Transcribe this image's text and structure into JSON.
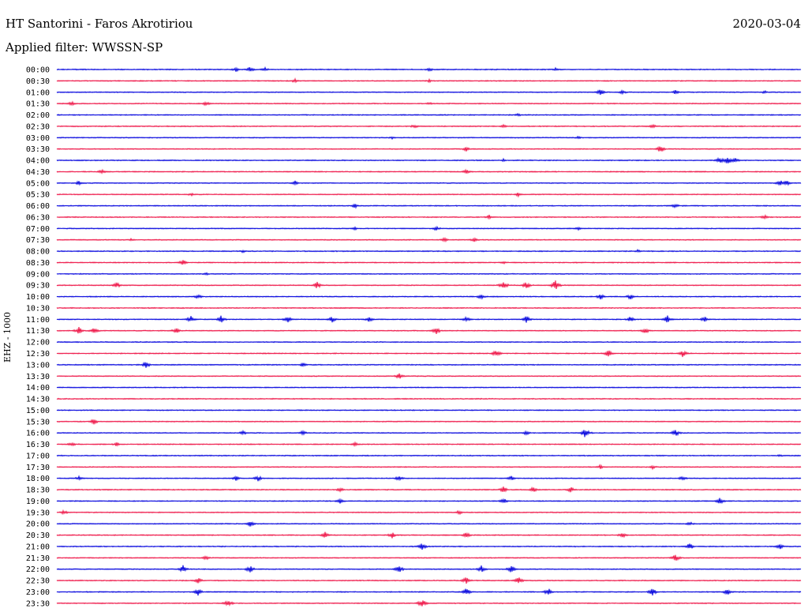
{
  "header": {
    "station": "HT Santorini - Faros Akrotiriou",
    "date": "2020-03-04",
    "filter": "Applied filter: WWSSN-SP"
  },
  "chart_data": {
    "type": "line",
    "title": "HT Santorini - Faros Akrotiriou",
    "ylabel": "EHZ - 1000",
    "colors": [
      "#0000dd",
      "#ee1144"
    ],
    "rows": [
      {
        "label": "00:00",
        "events": [
          {
            "t": 0.24,
            "a": 3
          },
          {
            "t": 0.26,
            "a": 4
          },
          {
            "t": 0.28,
            "a": 3
          },
          {
            "t": 0.5,
            "a": 3
          },
          {
            "t": 0.67,
            "a": 2
          }
        ]
      },
      {
        "label": "00:30",
        "events": [
          {
            "t": 0.32,
            "a": 3
          },
          {
            "t": 0.5,
            "a": 2
          }
        ]
      },
      {
        "label": "01:00",
        "events": [
          {
            "t": 0.73,
            "a": 4
          },
          {
            "t": 0.76,
            "a": 3
          },
          {
            "t": 0.83,
            "a": 3
          },
          {
            "t": 0.95,
            "a": 2
          }
        ]
      },
      {
        "label": "01:30",
        "events": [
          {
            "t": 0.02,
            "a": 3
          },
          {
            "t": 0.2,
            "a": 3
          },
          {
            "t": 0.5,
            "a": 2
          }
        ]
      },
      {
        "label": "02:00",
        "events": [
          {
            "t": 0.62,
            "a": 2
          }
        ]
      },
      {
        "label": "02:30",
        "events": [
          {
            "t": 0.48,
            "a": 3
          },
          {
            "t": 0.6,
            "a": 2
          },
          {
            "t": 0.8,
            "a": 3
          }
        ]
      },
      {
        "label": "03:00",
        "events": [
          {
            "t": 0.45,
            "a": 2
          },
          {
            "t": 0.7,
            "a": 2
          }
        ]
      },
      {
        "label": "03:30",
        "events": [
          {
            "t": 0.55,
            "a": 3
          },
          {
            "t": 0.81,
            "a": 5
          }
        ]
      },
      {
        "label": "04:00",
        "events": [
          {
            "t": 0.6,
            "a": 2
          },
          {
            "t": 0.89,
            "a": 5
          },
          {
            "t": 0.9,
            "a": 6
          },
          {
            "t": 0.91,
            "a": 4
          }
        ]
      },
      {
        "label": "04:30",
        "events": [
          {
            "t": 0.06,
            "a": 3
          },
          {
            "t": 0.55,
            "a": 3
          }
        ]
      },
      {
        "label": "05:00",
        "events": [
          {
            "t": 0.03,
            "a": 3
          },
          {
            "t": 0.32,
            "a": 3
          },
          {
            "t": 0.97,
            "a": 5
          },
          {
            "t": 0.98,
            "a": 4
          }
        ]
      },
      {
        "label": "05:30",
        "events": [
          {
            "t": 0.18,
            "a": 2
          },
          {
            "t": 0.62,
            "a": 3
          }
        ]
      },
      {
        "label": "06:00",
        "events": [
          {
            "t": 0.4,
            "a": 3
          },
          {
            "t": 0.83,
            "a": 3
          }
        ]
      },
      {
        "label": "06:30",
        "events": [
          {
            "t": 0.58,
            "a": 3
          },
          {
            "t": 0.95,
            "a": 3
          }
        ]
      },
      {
        "label": "07:00",
        "events": [
          {
            "t": 0.4,
            "a": 2
          },
          {
            "t": 0.51,
            "a": 3
          },
          {
            "t": 0.7,
            "a": 2
          }
        ]
      },
      {
        "label": "07:30",
        "events": [
          {
            "t": 0.1,
            "a": 2
          },
          {
            "t": 0.52,
            "a": 3
          },
          {
            "t": 0.56,
            "a": 3
          }
        ]
      },
      {
        "label": "08:00",
        "events": [
          {
            "t": 0.25,
            "a": 2
          },
          {
            "t": 0.78,
            "a": 2
          }
        ]
      },
      {
        "label": "08:30",
        "events": [
          {
            "t": 0.17,
            "a": 4
          },
          {
            "t": 0.6,
            "a": 2
          }
        ]
      },
      {
        "label": "09:00",
        "events": [
          {
            "t": 0.2,
            "a": 2
          }
        ]
      },
      {
        "label": "09:30",
        "events": [
          {
            "t": 0.08,
            "a": 4
          },
          {
            "t": 0.35,
            "a": 5
          },
          {
            "t": 0.6,
            "a": 6
          },
          {
            "t": 0.63,
            "a": 5
          },
          {
            "t": 0.67,
            "a": 7
          }
        ]
      },
      {
        "label": "10:00",
        "events": [
          {
            "t": 0.19,
            "a": 3
          },
          {
            "t": 0.57,
            "a": 4
          },
          {
            "t": 0.73,
            "a": 4
          },
          {
            "t": 0.77,
            "a": 4
          }
        ]
      },
      {
        "label": "10:30",
        "events": []
      },
      {
        "label": "11:00",
        "events": [
          {
            "t": 0.18,
            "a": 5
          },
          {
            "t": 0.22,
            "a": 5
          },
          {
            "t": 0.31,
            "a": 5
          },
          {
            "t": 0.37,
            "a": 4
          },
          {
            "t": 0.42,
            "a": 4
          },
          {
            "t": 0.55,
            "a": 4
          },
          {
            "t": 0.63,
            "a": 5
          },
          {
            "t": 0.77,
            "a": 4
          },
          {
            "t": 0.82,
            "a": 5
          },
          {
            "t": 0.87,
            "a": 4
          }
        ]
      },
      {
        "label": "11:30",
        "events": [
          {
            "t": 0.03,
            "a": 5
          },
          {
            "t": 0.05,
            "a": 5
          },
          {
            "t": 0.16,
            "a": 4
          },
          {
            "t": 0.51,
            "a": 5
          },
          {
            "t": 0.79,
            "a": 4
          }
        ]
      },
      {
        "label": "12:00",
        "events": []
      },
      {
        "label": "12:30",
        "events": [
          {
            "t": 0.59,
            "a": 5
          },
          {
            "t": 0.74,
            "a": 5
          },
          {
            "t": 0.84,
            "a": 5
          }
        ]
      },
      {
        "label": "13:00",
        "events": [
          {
            "t": 0.12,
            "a": 5
          },
          {
            "t": 0.33,
            "a": 3
          }
        ]
      },
      {
        "label": "13:30",
        "events": [
          {
            "t": 0.46,
            "a": 4
          }
        ]
      },
      {
        "label": "14:00",
        "events": []
      },
      {
        "label": "14:30",
        "events": []
      },
      {
        "label": "15:00",
        "events": []
      },
      {
        "label": "15:30",
        "events": [
          {
            "t": 0.05,
            "a": 4
          }
        ]
      },
      {
        "label": "16:00",
        "events": [
          {
            "t": 0.25,
            "a": 3
          },
          {
            "t": 0.33,
            "a": 3
          },
          {
            "t": 0.63,
            "a": 3
          },
          {
            "t": 0.71,
            "a": 7
          },
          {
            "t": 0.83,
            "a": 5
          }
        ]
      },
      {
        "label": "16:30",
        "events": [
          {
            "t": 0.02,
            "a": 3
          },
          {
            "t": 0.08,
            "a": 3
          },
          {
            "t": 0.4,
            "a": 3
          }
        ]
      },
      {
        "label": "17:00",
        "events": [
          {
            "t": 0.97,
            "a": 2
          }
        ]
      },
      {
        "label": "17:30",
        "events": [
          {
            "t": 0.73,
            "a": 3
          },
          {
            "t": 0.8,
            "a": 3
          }
        ]
      },
      {
        "label": "18:00",
        "events": [
          {
            "t": 0.03,
            "a": 3
          },
          {
            "t": 0.24,
            "a": 3
          },
          {
            "t": 0.27,
            "a": 4
          },
          {
            "t": 0.46,
            "a": 4
          },
          {
            "t": 0.61,
            "a": 3
          },
          {
            "t": 0.84,
            "a": 3
          }
        ]
      },
      {
        "label": "18:30",
        "events": [
          {
            "t": 0.38,
            "a": 3
          },
          {
            "t": 0.6,
            "a": 4
          },
          {
            "t": 0.64,
            "a": 4
          },
          {
            "t": 0.69,
            "a": 4
          }
        ]
      },
      {
        "label": "19:00",
        "events": [
          {
            "t": 0.38,
            "a": 4
          },
          {
            "t": 0.6,
            "a": 4
          },
          {
            "t": 0.89,
            "a": 5
          }
        ]
      },
      {
        "label": "19:30",
        "events": [
          {
            "t": 0.01,
            "a": 3
          },
          {
            "t": 0.54,
            "a": 3
          }
        ]
      },
      {
        "label": "20:00",
        "events": [
          {
            "t": 0.26,
            "a": 4
          },
          {
            "t": 0.85,
            "a": 3
          }
        ]
      },
      {
        "label": "20:30",
        "events": [
          {
            "t": 0.36,
            "a": 4
          },
          {
            "t": 0.45,
            "a": 4
          },
          {
            "t": 0.55,
            "a": 4
          },
          {
            "t": 0.76,
            "a": 4
          }
        ]
      },
      {
        "label": "21:00",
        "events": [
          {
            "t": 0.49,
            "a": 5
          },
          {
            "t": 0.85,
            "a": 5
          },
          {
            "t": 0.97,
            "a": 4
          }
        ]
      },
      {
        "label": "21:30",
        "events": [
          {
            "t": 0.2,
            "a": 3
          },
          {
            "t": 0.83,
            "a": 5
          }
        ]
      },
      {
        "label": "22:00",
        "events": [
          {
            "t": 0.17,
            "a": 5
          },
          {
            "t": 0.26,
            "a": 5
          },
          {
            "t": 0.46,
            "a": 5
          },
          {
            "t": 0.57,
            "a": 5
          },
          {
            "t": 0.61,
            "a": 5
          }
        ]
      },
      {
        "label": "22:30",
        "events": [
          {
            "t": 0.19,
            "a": 4
          },
          {
            "t": 0.55,
            "a": 5
          },
          {
            "t": 0.62,
            "a": 5
          }
        ]
      },
      {
        "label": "23:00",
        "events": [
          {
            "t": 0.19,
            "a": 5
          },
          {
            "t": 0.55,
            "a": 5
          },
          {
            "t": 0.66,
            "a": 5
          },
          {
            "t": 0.8,
            "a": 5
          },
          {
            "t": 0.9,
            "a": 5
          }
        ]
      },
      {
        "label": "23:30",
        "events": [
          {
            "t": 0.23,
            "a": 5
          },
          {
            "t": 0.49,
            "a": 6
          }
        ]
      }
    ]
  }
}
